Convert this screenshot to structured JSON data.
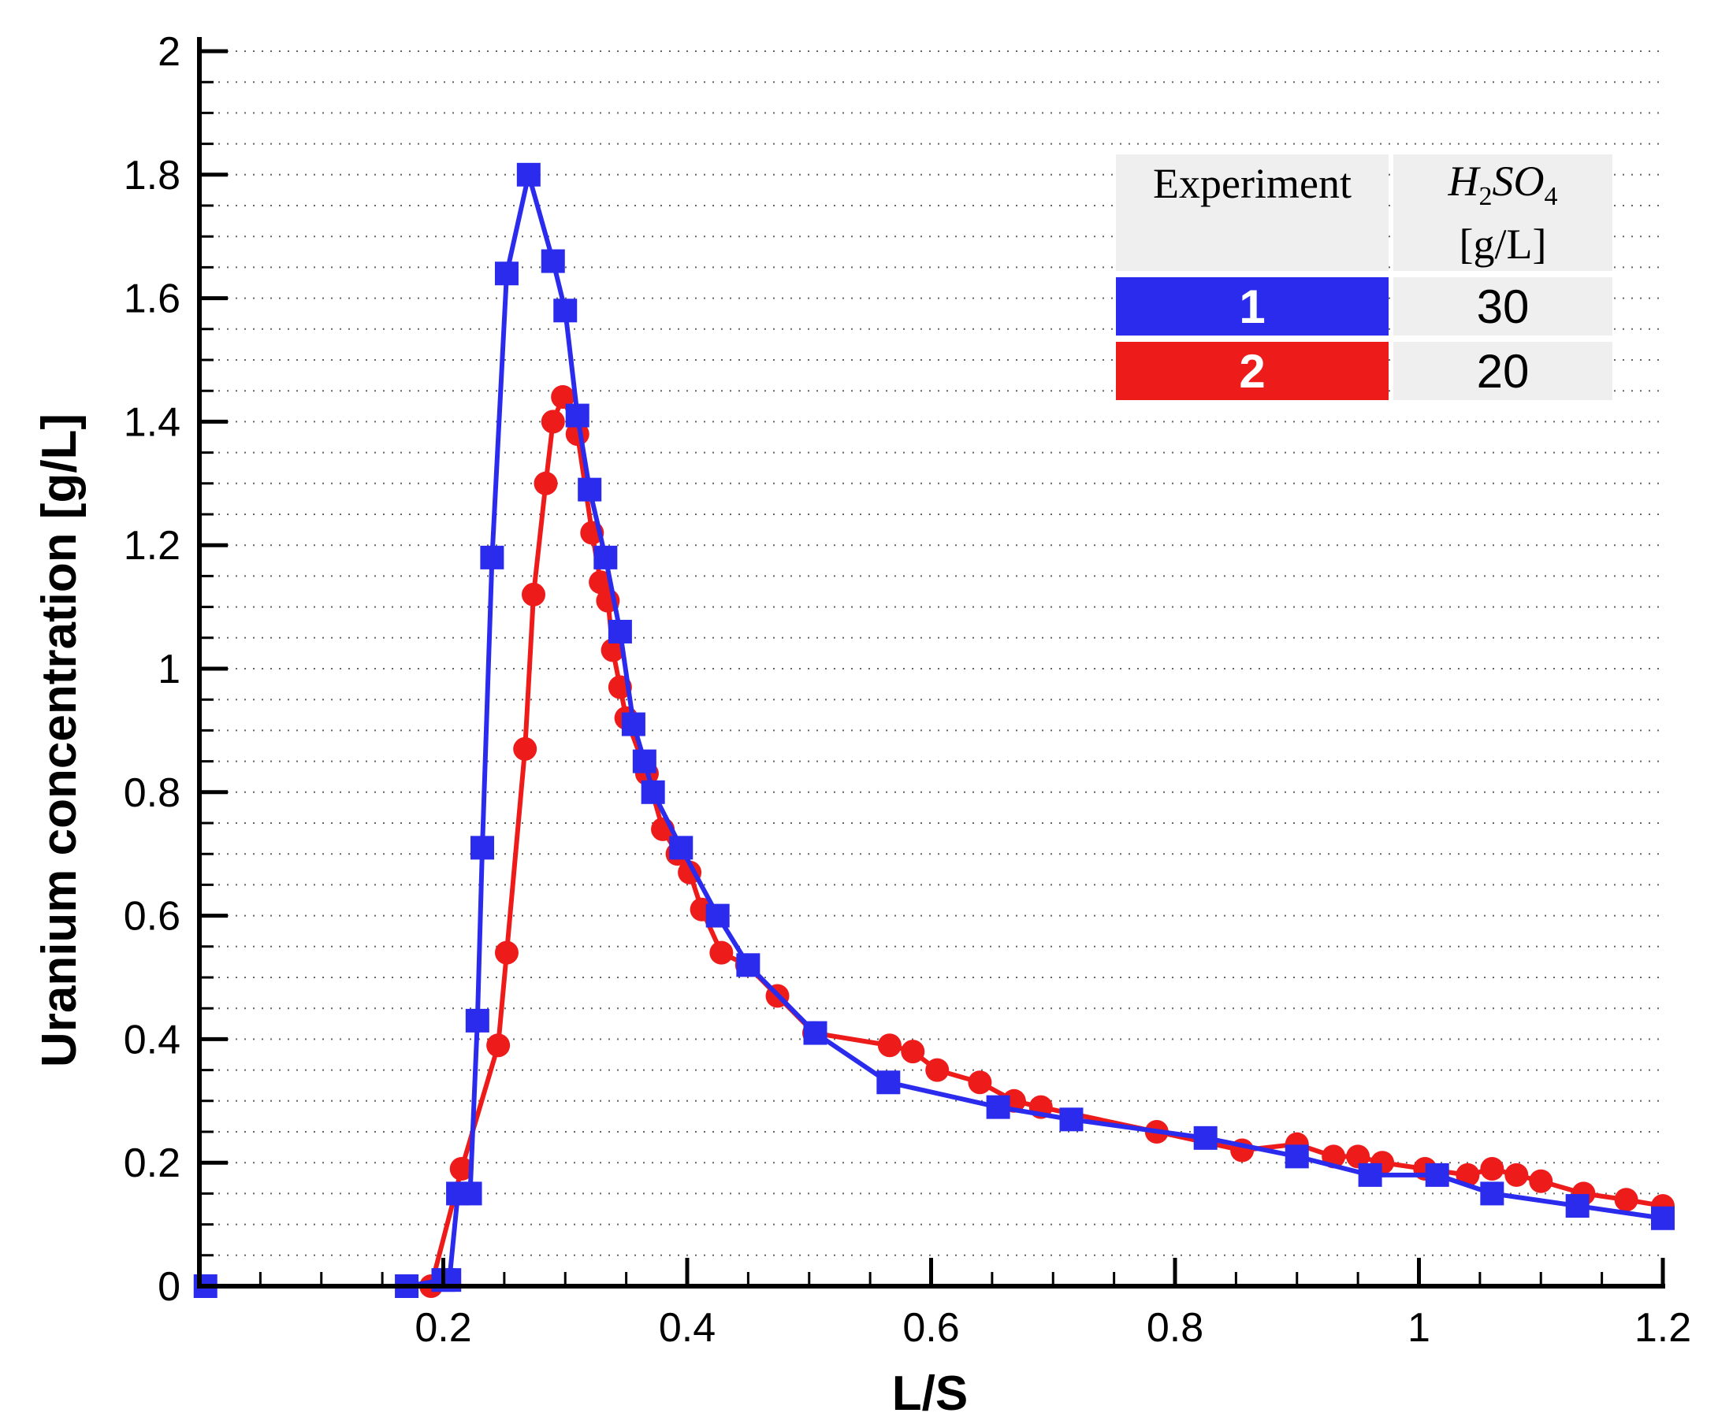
{
  "chart_data": {
    "type": "line",
    "title": "",
    "xlabel": "L/S",
    "ylabel": "Uranium concentration [g/L]",
    "xlim": [
      0,
      1.2
    ],
    "ylim": [
      0,
      2
    ],
    "xticks": [
      0.2,
      0.4,
      0.6,
      0.8,
      1,
      1.2
    ],
    "xtick_labels": [
      "0.2",
      "0.4",
      "0.6",
      "0.8",
      "1",
      "1.2"
    ],
    "yticks": [
      0,
      0.2,
      0.4,
      0.6,
      0.8,
      1,
      1.2,
      1.4,
      1.6,
      1.8,
      2
    ],
    "ytick_labels": [
      "0",
      "0.2",
      "0.4",
      "0.6",
      "0.8",
      "1",
      "1.2",
      "1.4",
      "1.6",
      "1.8",
      "2"
    ],
    "grid": "horizontal dotted",
    "series": [
      {
        "name": "1",
        "color": "#2b2bee",
        "marker": "square",
        "x": [
          0.005,
          0.17,
          0.2,
          0.205,
          0.212,
          0.222,
          0.228,
          0.232,
          0.24,
          0.252,
          0.27,
          0.29,
          0.3,
          0.31,
          0.32,
          0.333,
          0.345,
          0.356,
          0.365,
          0.372,
          0.395,
          0.425,
          0.45,
          0.505,
          0.565,
          0.655,
          0.715,
          0.825,
          0.9,
          0.96,
          1.015,
          1.06,
          1.13,
          1.2
        ],
        "y": [
          0,
          0,
          0.01,
          0.01,
          0.15,
          0.15,
          0.43,
          0.71,
          1.18,
          1.64,
          1.8,
          1.66,
          1.58,
          1.41,
          1.29,
          1.18,
          1.06,
          0.91,
          0.85,
          0.8,
          0.71,
          0.6,
          0.52,
          0.41,
          0.33,
          0.29,
          0.27,
          0.24,
          0.21,
          0.18,
          0.18,
          0.15,
          0.13,
          0.11
        ]
      },
      {
        "name": "2",
        "color": "#ee1b1b",
        "marker": "circle",
        "x": [
          0.19,
          0.215,
          0.245,
          0.252,
          0.267,
          0.274,
          0.284,
          0.29,
          0.298,
          0.31,
          0.322,
          0.329,
          0.335,
          0.339,
          0.345,
          0.35,
          0.367,
          0.38,
          0.392,
          0.402,
          0.412,
          0.428,
          0.449,
          0.474,
          0.504,
          0.566,
          0.585,
          0.605,
          0.64,
          0.668,
          0.69,
          0.785,
          0.855,
          0.9,
          0.93,
          0.95,
          0.97,
          1.005,
          1.04,
          1.06,
          1.08,
          1.1,
          1.135,
          1.17,
          1.2
        ],
        "y": [
          0,
          0.19,
          0.39,
          0.54,
          0.87,
          1.12,
          1.3,
          1.4,
          1.44,
          1.38,
          1.22,
          1.14,
          1.11,
          1.03,
          0.97,
          0.92,
          0.83,
          0.74,
          0.7,
          0.67,
          0.61,
          0.54,
          0.52,
          0.47,
          0.41,
          0.39,
          0.38,
          0.35,
          0.33,
          0.3,
          0.29,
          0.25,
          0.22,
          0.23,
          0.21,
          0.21,
          0.2,
          0.19,
          0.18,
          0.19,
          0.18,
          0.17,
          0.15,
          0.14,
          0.13
        ]
      }
    ]
  },
  "legend": {
    "header_experiment": "Experiment",
    "header_chem_h": "H",
    "header_chem_2": "2",
    "header_chem_so": "SO",
    "header_chem_4": "4",
    "header_unit": "[g/L]",
    "rows": [
      {
        "experiment": "1",
        "value": "30",
        "color": "#2b2bee"
      },
      {
        "experiment": "2",
        "value": "20",
        "color": "#ee1b1b"
      }
    ]
  }
}
